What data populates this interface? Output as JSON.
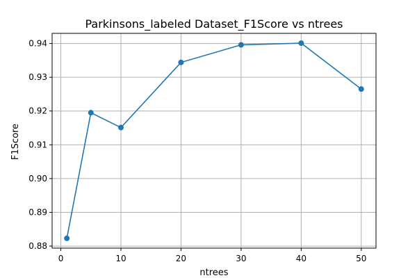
{
  "chart_data": {
    "type": "line",
    "title": "Parkinsons_labeled Dataset_F1Score vs ntrees",
    "xlabel": "ntrees",
    "ylabel": "F1Score",
    "x": [
      1,
      5,
      10,
      20,
      30,
      40,
      50
    ],
    "series": [
      {
        "values": [
          0.8823,
          0.9195,
          0.9151,
          0.9344,
          0.9396,
          0.9401,
          0.9265
        ],
        "color": "#1f77b4",
        "marker": "circle"
      }
    ],
    "xlim": [
      -1.45,
      52.45
    ],
    "ylim": [
      0.8794,
      0.943
    ],
    "xticks": [
      0,
      10,
      20,
      30,
      40,
      50
    ],
    "xtick_labels": [
      "0",
      "10",
      "20",
      "30",
      "40",
      "50"
    ],
    "yticks": [
      0.88,
      0.89,
      0.9,
      0.91,
      0.92,
      0.93,
      0.94
    ],
    "ytick_labels": [
      "0.88",
      "0.89",
      "0.90",
      "0.91",
      "0.92",
      "0.93",
      "0.94"
    ],
    "grid": true
  }
}
